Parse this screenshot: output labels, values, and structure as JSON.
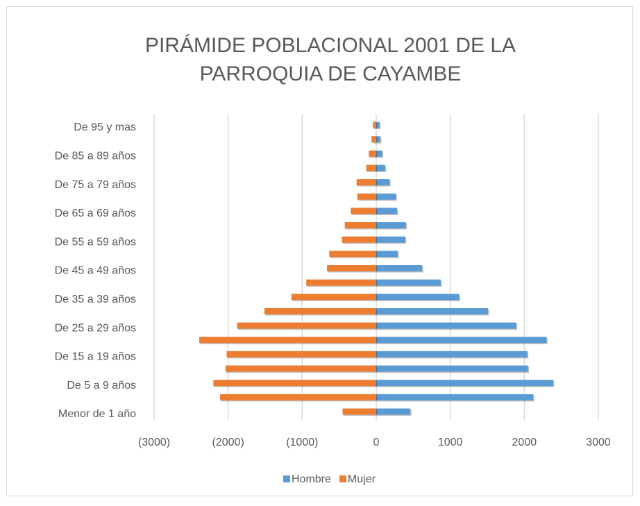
{
  "chart_data": {
    "type": "bar",
    "orientation": "horizontal",
    "title": [
      "PIRÁMIDE POBLACIONAL 2001 DE LA",
      "PARROQUIA DE CAYAMBE"
    ],
    "categories": [
      "Menor de 1 año",
      null,
      "De 5 a 9 años",
      null,
      "De 15 a 19 años",
      null,
      "De 25 a 29 años",
      null,
      "De 35 a 39 años",
      null,
      "De 45 a 49 años",
      null,
      "De 55 a 59 años",
      null,
      "De 65 a 69 años",
      null,
      "De 75 a 79 años",
      null,
      "De 85 a 89 años",
      null,
      "De 95 y mas"
    ],
    "series": [
      {
        "name": "Hombre",
        "color": "#5b9bd5",
        "values": [
          460,
          2120,
          2390,
          2050,
          2040,
          2300,
          1890,
          1510,
          1120,
          870,
          620,
          290,
          390,
          400,
          280,
          265,
          180,
          120,
          80,
          55,
          45
        ]
      },
      {
        "name": "Mujer",
        "color": "#ed7d31",
        "values": [
          -455,
          -2110,
          -2200,
          -2035,
          -2020,
          -2390,
          -1880,
          -1510,
          -1145,
          -945,
          -665,
          -635,
          -465,
          -425,
          -345,
          -255,
          -265,
          -135,
          -100,
          -65,
          -45
        ]
      }
    ],
    "xlim": [
      -3000,
      3000
    ],
    "xticks": [
      {
        "value": -3000,
        "label": "(3000)"
      },
      {
        "value": -2000,
        "label": "(2000)"
      },
      {
        "value": -1000,
        "label": "(1000)"
      },
      0,
      1000,
      2000,
      3000
    ],
    "grid": true,
    "legend": "bottom"
  }
}
